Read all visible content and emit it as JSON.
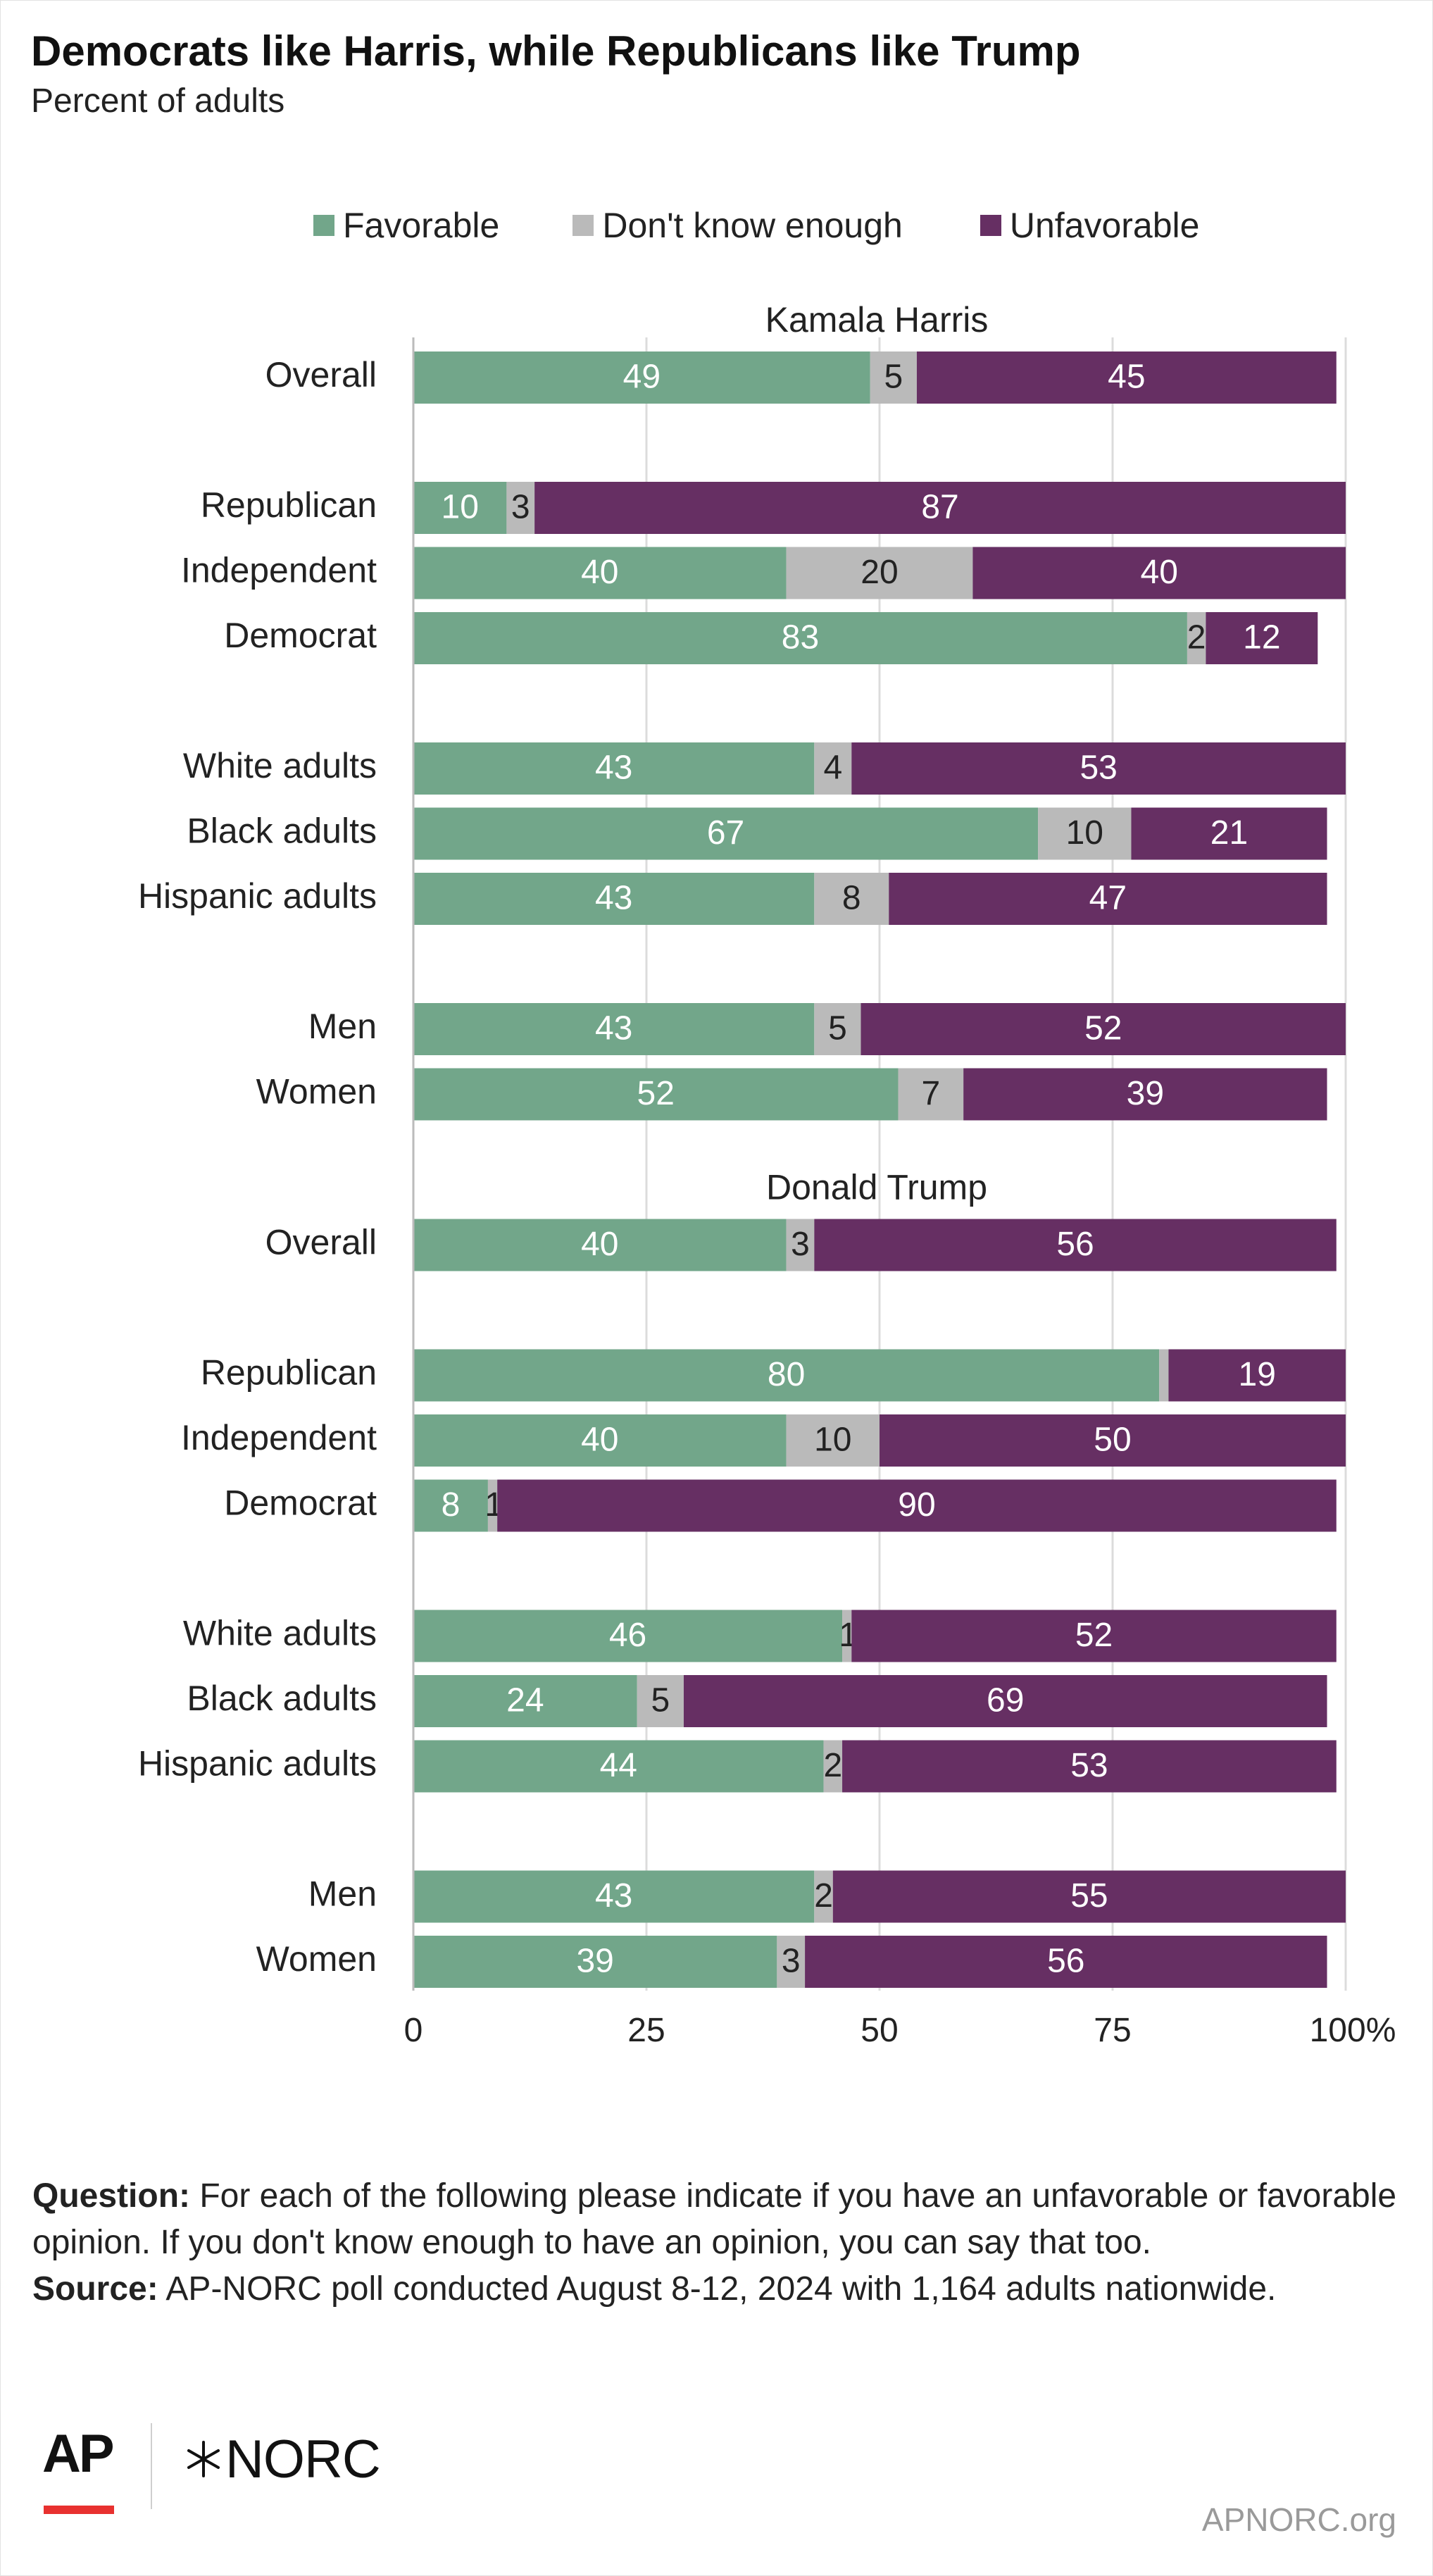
{
  "header": {
    "title": "Democrats like Harris, while Republicans like Trump",
    "subtitle": "Percent of adults"
  },
  "legend": [
    {
      "label": "Favorable",
      "color": "#72a68a"
    },
    {
      "label": "Don't know enough",
      "color": "#bababa"
    },
    {
      "label": "Unfavorable",
      "color": "#662f63"
    }
  ],
  "chart_data": {
    "type": "bar",
    "orientation": "horizontal",
    "stacked": true,
    "xlim": [
      0,
      100
    ],
    "x_ticks": [
      "0",
      "25",
      "50",
      "75",
      "100%"
    ],
    "grid": true,
    "legend_position": "top",
    "series_names": [
      "Favorable",
      "Don't know enough",
      "Unfavorable"
    ],
    "colors": [
      "#72a68a",
      "#bababa",
      "#662f63"
    ],
    "panels": [
      {
        "title": "Kamala Harris",
        "groups": [
          [
            {
              "label": "Overall",
              "values": [
                49,
                5,
                45
              ],
              "labels": [
                "49",
                "5",
                "45"
              ]
            }
          ],
          [
            {
              "label": "Republican",
              "values": [
                10,
                3,
                87
              ],
              "labels": [
                "10",
                "3",
                "87"
              ]
            },
            {
              "label": "Independent",
              "values": [
                40,
                20,
                40
              ],
              "labels": [
                "40",
                "20",
                "40"
              ]
            },
            {
              "label": "Democrat",
              "values": [
                83,
                2,
                12
              ],
              "labels": [
                "83",
                "2",
                "12"
              ]
            }
          ],
          [
            {
              "label": "White adults",
              "values": [
                43,
                4,
                53
              ],
              "labels": [
                "43",
                "4",
                "53"
              ]
            },
            {
              "label": "Black adults",
              "values": [
                67,
                10,
                21
              ],
              "labels": [
                "67",
                "10",
                "21"
              ]
            },
            {
              "label": "Hispanic adults",
              "values": [
                43,
                8,
                47
              ],
              "labels": [
                "43",
                "8",
                "47"
              ]
            }
          ],
          [
            {
              "label": "Men",
              "values": [
                43,
                5,
                52
              ],
              "labels": [
                "43",
                "5",
                "52"
              ]
            },
            {
              "label": "Women",
              "values": [
                52,
                7,
                39
              ],
              "labels": [
                "52",
                "7",
                "39"
              ]
            }
          ]
        ]
      },
      {
        "title": "Donald Trump",
        "groups": [
          [
            {
              "label": "Overall",
              "values": [
                40,
                3,
                56
              ],
              "labels": [
                "40",
                "3",
                "56"
              ]
            }
          ],
          [
            {
              "label": "Republican",
              "values": [
                80,
                1,
                19
              ],
              "labels": [
                "80",
                "",
                "19"
              ]
            },
            {
              "label": "Independent",
              "values": [
                40,
                10,
                50
              ],
              "labels": [
                "40",
                "10",
                "50"
              ]
            },
            {
              "label": "Democrat",
              "values": [
                8,
                1,
                90
              ],
              "labels": [
                "8",
                "1",
                "90"
              ]
            }
          ],
          [
            {
              "label": "White adults",
              "values": [
                46,
                1,
                52
              ],
              "labels": [
                "46",
                "1",
                "52"
              ]
            },
            {
              "label": "Black adults",
              "values": [
                24,
                5,
                69
              ],
              "labels": [
                "24",
                "5",
                "69"
              ]
            },
            {
              "label": "Hispanic adults",
              "values": [
                44,
                2,
                53
              ],
              "labels": [
                "44",
                "2",
                "53"
              ]
            }
          ],
          [
            {
              "label": "Men",
              "values": [
                43,
                2,
                55
              ],
              "labels": [
                "43",
                "2",
                "55"
              ]
            },
            {
              "label": "Women",
              "values": [
                39,
                3,
                56
              ],
              "labels": [
                "39",
                "3",
                "56"
              ]
            }
          ]
        ]
      }
    ]
  },
  "notes": {
    "question_label": "Question:",
    "question_text": " For each of the following please indicate if you have an unfavorable or favorable opinion. If you don't know enough to have an opinion, you can say that too.",
    "source_label": "Source:",
    "source_text": " AP-NORC poll conducted August 8-12, 2024 with 1,164 adults nationwide."
  },
  "footer": {
    "ap_logo_text": "AP",
    "norc_logo_text": "NORC",
    "site": "APNORC.org"
  }
}
